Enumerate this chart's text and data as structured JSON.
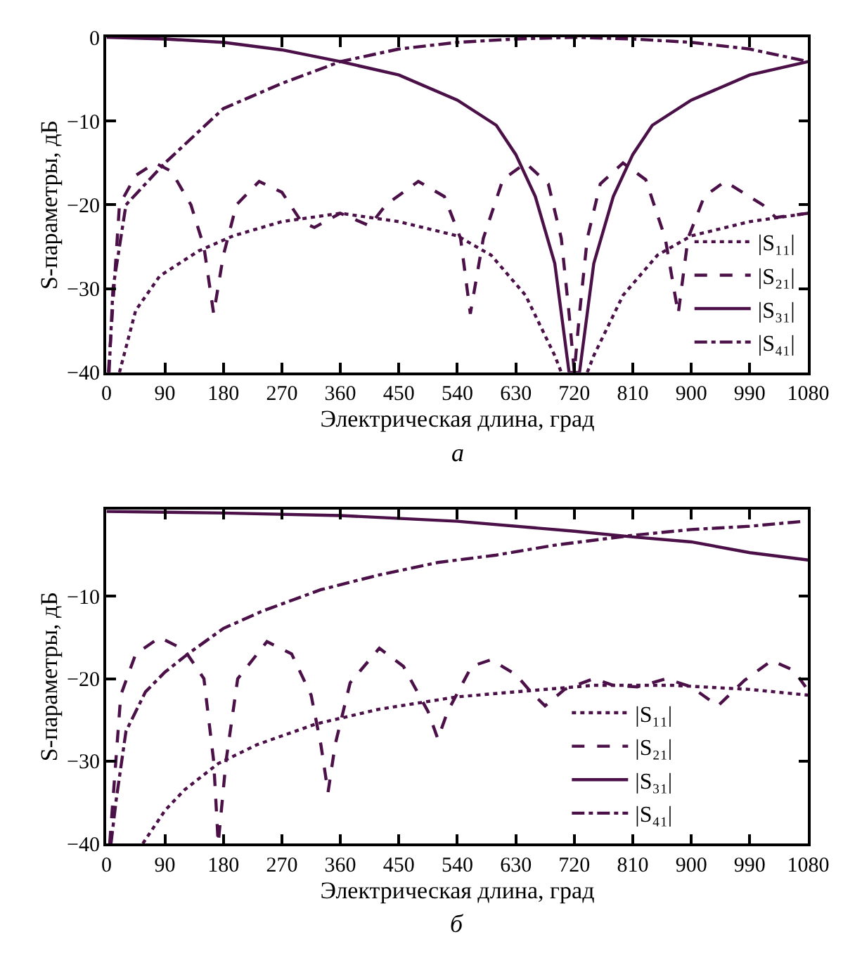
{
  "chart_data": [
    {
      "type": "line",
      "xlabel": "Электрическая длина, град",
      "ylabel": "S-параметры, дБ",
      "annotations": [
        "а"
      ],
      "xlim": [
        0,
        1080
      ],
      "ylim": [
        -40,
        0
      ],
      "xticks": [
        0,
        90,
        180,
        270,
        360,
        450,
        540,
        630,
        720,
        810,
        900,
        990,
        1080
      ],
      "yticks": [
        {
          "value": 0,
          "label": "0"
        },
        {
          "value": -10,
          "label": "−10"
        },
        {
          "value": -20,
          "label": "−20"
        },
        {
          "value": -30,
          "label": "−30"
        },
        {
          "value": -40,
          "label": "−40"
        }
      ],
      "legend": "bottom right",
      "marker": "none",
      "series": [
        {
          "name": "|S₁₁|",
          "color": "#4b1048",
          "line_style": "dotted",
          "x": [
            20,
            45,
            82,
            142,
            195,
            270,
            360,
            450,
            540,
            592,
            645,
            690,
            700,
            720,
            740,
            750,
            795,
            848,
            900,
            990,
            1080
          ],
          "values": [
            -40,
            -32.6,
            -28.5,
            -25.5,
            -23.7,
            -22,
            -21,
            -22,
            -23.7,
            -26,
            -30.8,
            -38,
            -40,
            null,
            -40,
            -38,
            -30.8,
            -26,
            -23.7,
            -22,
            -21
          ]
        },
        {
          "name": "|S₂₁|",
          "color": "#4b1048",
          "line_style": "dashed",
          "x": [
            3,
            20,
            45,
            75,
            100,
            130,
            150,
            165,
            180,
            200,
            235,
            270,
            300,
            320,
            360,
            405,
            430,
            480,
            520,
            545,
            560,
            580,
            610,
            645,
            680,
            700,
            712,
            720,
            728,
            740,
            760,
            795,
            830,
            860,
            880,
            895,
            920,
            952,
            1010,
            1030,
            1080
          ],
          "values": [
            -40,
            -20,
            -16.5,
            -15,
            -16,
            -20,
            -25,
            -33,
            -26,
            -20,
            -17.2,
            -18.5,
            -22,
            -22.7,
            -21,
            -22.5,
            -20,
            -17.2,
            -19,
            -24,
            -33,
            -24,
            -17,
            -15,
            -17.5,
            -24,
            -33,
            -40,
            -33,
            -24,
            -17.5,
            -15,
            -17,
            -24,
            -33,
            -24,
            -19,
            -17.2,
            -20,
            -21.5,
            -21
          ]
        },
        {
          "name": "|S₃₁|",
          "color": "#4b1048",
          "line_style": "solid",
          "x": [
            0,
            90,
            180,
            270,
            360,
            450,
            540,
            600,
            630,
            660,
            690,
            712,
            720,
            728,
            750,
            780,
            810,
            840,
            900,
            990,
            1080
          ],
          "values": [
            0,
            -0.2,
            -0.6,
            -1.5,
            -2.9,
            -4.5,
            -7.5,
            -10.5,
            -14,
            -19,
            -27,
            -40,
            -40,
            -40,
            -27,
            -19,
            -14,
            -10.5,
            -7.5,
            -4.5,
            -2.9
          ]
        },
        {
          "name": "|S₄₁|",
          "color": "#4b1048",
          "line_style": "dashdot",
          "x": [
            4,
            10,
            30,
            90,
            180,
            270,
            360,
            450,
            540,
            630,
            720,
            810,
            900,
            990,
            1080
          ],
          "values": [
            -40,
            -30,
            -20,
            -15,
            -8.5,
            -5.5,
            -2.9,
            -1.4,
            -0.6,
            -0.2,
            0,
            -0.2,
            -0.6,
            -1.4,
            -2.9
          ]
        }
      ]
    },
    {
      "type": "line",
      "xlabel": "Электрическая длина, град",
      "ylabel": "S-параметры, дБ",
      "annotations": [
        "б"
      ],
      "xlim": [
        0,
        1080
      ],
      "ylim": [
        -40,
        0.5
      ],
      "xticks": [
        0,
        90,
        180,
        270,
        360,
        450,
        540,
        630,
        720,
        810,
        900,
        990,
        1080
      ],
      "yticks": [
        {
          "value": -10,
          "label": "−10"
        },
        {
          "value": -20,
          "label": "−20"
        },
        {
          "value": -30,
          "label": "−30"
        },
        {
          "value": -40,
          "label": "−40"
        }
      ],
      "legend": "bottom right",
      "marker": "none",
      "series": [
        {
          "name": "|S₁₁|",
          "color": "#4b1048",
          "line_style": "dotted",
          "x": [
            56,
            90,
            120,
            172,
            232,
            322,
            420,
            540,
            645,
            750,
            870,
            990,
            1080
          ],
          "values": [
            -40,
            -36,
            -33.5,
            -30.3,
            -28,
            -25.5,
            -23.7,
            -22.2,
            -21.5,
            -20.8,
            -20.8,
            -21.3,
            -22
          ]
        },
        {
          "name": "|S₂₁|",
          "color": "#4b1048",
          "line_style": "dashed",
          "x": [
            5,
            22,
            45,
            82,
            120,
            150,
            165,
            172,
            184,
            202,
            247,
            285,
            315,
            330,
            341,
            352,
            375,
            420,
            457,
            495,
            510,
            525,
            562,
            592,
            630,
            652,
            675,
            705,
            750,
            780,
            817,
            862,
            900,
            941,
            982,
            1024,
            1058,
            1076
          ],
          "values": [
            -40,
            -22,
            -17,
            -15,
            -16.5,
            -20,
            -30,
            -40,
            -30,
            -20,
            -15.5,
            -17,
            -22,
            -28,
            -33.8,
            -28,
            -20.5,
            -16.3,
            -18.5,
            -24,
            -27.3,
            -24,
            -18.5,
            -17.7,
            -19.5,
            -21.5,
            -23.3,
            -21.3,
            -20,
            -20.8,
            -21,
            -20,
            -21,
            -23.3,
            -20.2,
            -17.8,
            -19,
            -21
          ]
        },
        {
          "name": "|S₃₁|",
          "color": "#4b1048",
          "line_style": "solid",
          "x": [
            0,
            180,
            360,
            540,
            720,
            810,
            900,
            990,
            1080
          ],
          "values": [
            0.3,
            0.1,
            -0.2,
            -0.9,
            -2.1,
            -2.8,
            -3.4,
            -4.7,
            -5.6
          ]
        },
        {
          "name": "|S₄₁|",
          "color": "#4b1048",
          "line_style": "dashdot",
          "x": [
            7,
            15,
            30,
            60,
            90,
            127,
            180,
            240,
            330,
            420,
            510,
            600,
            690,
            810,
            900,
            990,
            1073
          ],
          "values": [
            -40,
            -34.7,
            -26.4,
            -21.6,
            -19.2,
            -16.9,
            -13.9,
            -11.8,
            -9.2,
            -7.4,
            -5.9,
            -5,
            -3.8,
            -2.6,
            -1.9,
            -1.5,
            -0.9
          ]
        }
      ]
    }
  ]
}
